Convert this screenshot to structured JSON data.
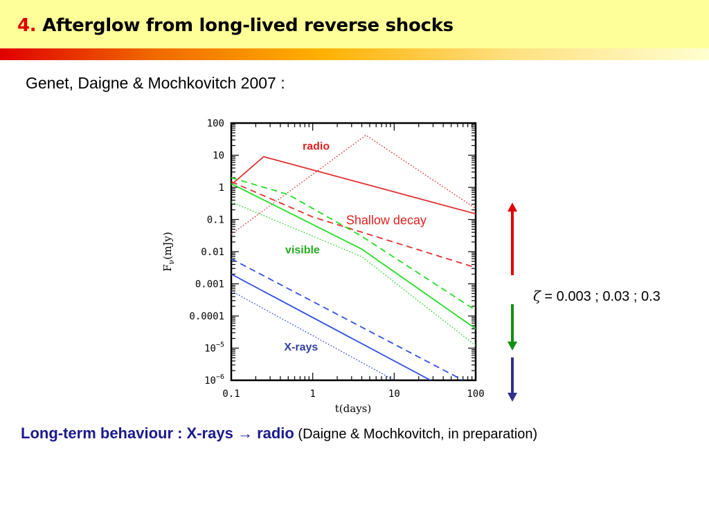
{
  "slide": {
    "title_number": "4.",
    "title_text": "Afterglow from long-lived reverse shocks",
    "subtitle": "Genet, Daigne & Mochkovitch 2007 :",
    "zeta_symbol": "ζ",
    "zeta_text": " = 0.003 ; 0.03 ; 0.3",
    "caption_bold_1": "Long-term behaviour : X-rays ",
    "caption_arrow": "→",
    "caption_bold_2": " radio",
    "caption_normal": " (Daigne & Mochkovitch, in preparation)"
  },
  "chart_data": {
    "type": "line",
    "xscale": "log",
    "yscale": "log",
    "xlim": [
      0.1,
      100
    ],
    "ylim": [
      1e-06,
      100
    ],
    "xlabel": "t(days)",
    "ylabel": "F_ν(mJy)",
    "ylabel_main": "F",
    "ylabel_sub": "ν",
    "ylabel_unit": "(mJy)",
    "x_ticks": [
      {
        "value": 0.1,
        "label": "0.1"
      },
      {
        "value": 1,
        "label": "1"
      },
      {
        "value": 10,
        "label": "10"
      },
      {
        "value": 100,
        "label": "100"
      }
    ],
    "y_ticks": [
      {
        "value": 100,
        "label": "100"
      },
      {
        "value": 10,
        "label": "10"
      },
      {
        "value": 1,
        "label": "1"
      },
      {
        "value": 0.1,
        "label": "0.1"
      },
      {
        "value": 0.01,
        "label": "0.01"
      },
      {
        "value": 0.001,
        "label": "0.001"
      },
      {
        "value": 0.0001,
        "label": "0.0001"
      },
      {
        "value": 1e-05,
        "label": "10",
        "sup": "−5"
      },
      {
        "value": 1e-06,
        "label": "10",
        "sup": "−6"
      }
    ],
    "series": [
      {
        "band": "radio",
        "style": "solid",
        "color": "#e03030",
        "x": [
          0.1,
          0.25,
          100
        ],
        "y": [
          1.2,
          9,
          0.15
        ]
      },
      {
        "band": "radio",
        "style": "dashed",
        "color": "#e03030",
        "x": [
          0.1,
          1,
          100
        ],
        "y": [
          1.5,
          0.12,
          0.0032
        ]
      },
      {
        "band": "radio",
        "style": "dotted",
        "color": "#e03030",
        "x": [
          0.1,
          4.5,
          100
        ],
        "y": [
          0.035,
          42,
          0.22
        ]
      },
      {
        "band": "visible",
        "style": "solid",
        "color": "#22dd22",
        "x": [
          0.1,
          4,
          100
        ],
        "y": [
          1.3,
          0.012,
          4e-05
        ]
      },
      {
        "band": "visible",
        "style": "dashed",
        "color": "#22dd22",
        "x": [
          0.1,
          0.5,
          4,
          100
        ],
        "y": [
          2,
          0.6,
          0.03,
          0.00015
        ]
      },
      {
        "band": "visible",
        "style": "dotted",
        "color": "#22dd22",
        "x": [
          0.1,
          4,
          100
        ],
        "y": [
          0.35,
          0.007,
          1.2e-05
        ]
      },
      {
        "band": "x-rays",
        "style": "solid",
        "color": "#3050e0",
        "x": [
          0.1,
          28
        ],
        "y": [
          0.002,
          1e-06
        ]
      },
      {
        "band": "x-rays",
        "style": "dashed",
        "color": "#3050e0",
        "x": [
          0.1,
          70
        ],
        "y": [
          0.006,
          1e-06
        ]
      },
      {
        "band": "x-rays",
        "style": "dotted",
        "color": "#3050e0",
        "x": [
          0.1,
          10
        ],
        "y": [
          0.0006,
          1e-06
        ]
      }
    ],
    "annotations": [
      {
        "text": "radio",
        "color": "#e02020",
        "x": 1.1,
        "y": 15
      },
      {
        "text": "Shallow decay",
        "color": "#e02020",
        "x": 8,
        "y": 0.07
      },
      {
        "text": "visible",
        "color": "#22aa22",
        "x": 0.75,
        "y": 0.0088
      },
      {
        "text": "X-rays",
        "color": "#3040a0",
        "x": 0.72,
        "y": 8.5e-06
      }
    ],
    "side_arrows": [
      {
        "direction": "up",
        "color": "#e00000"
      },
      {
        "direction": "down",
        "color": "#109010"
      },
      {
        "direction": "down",
        "color": "#303090"
      }
    ]
  }
}
